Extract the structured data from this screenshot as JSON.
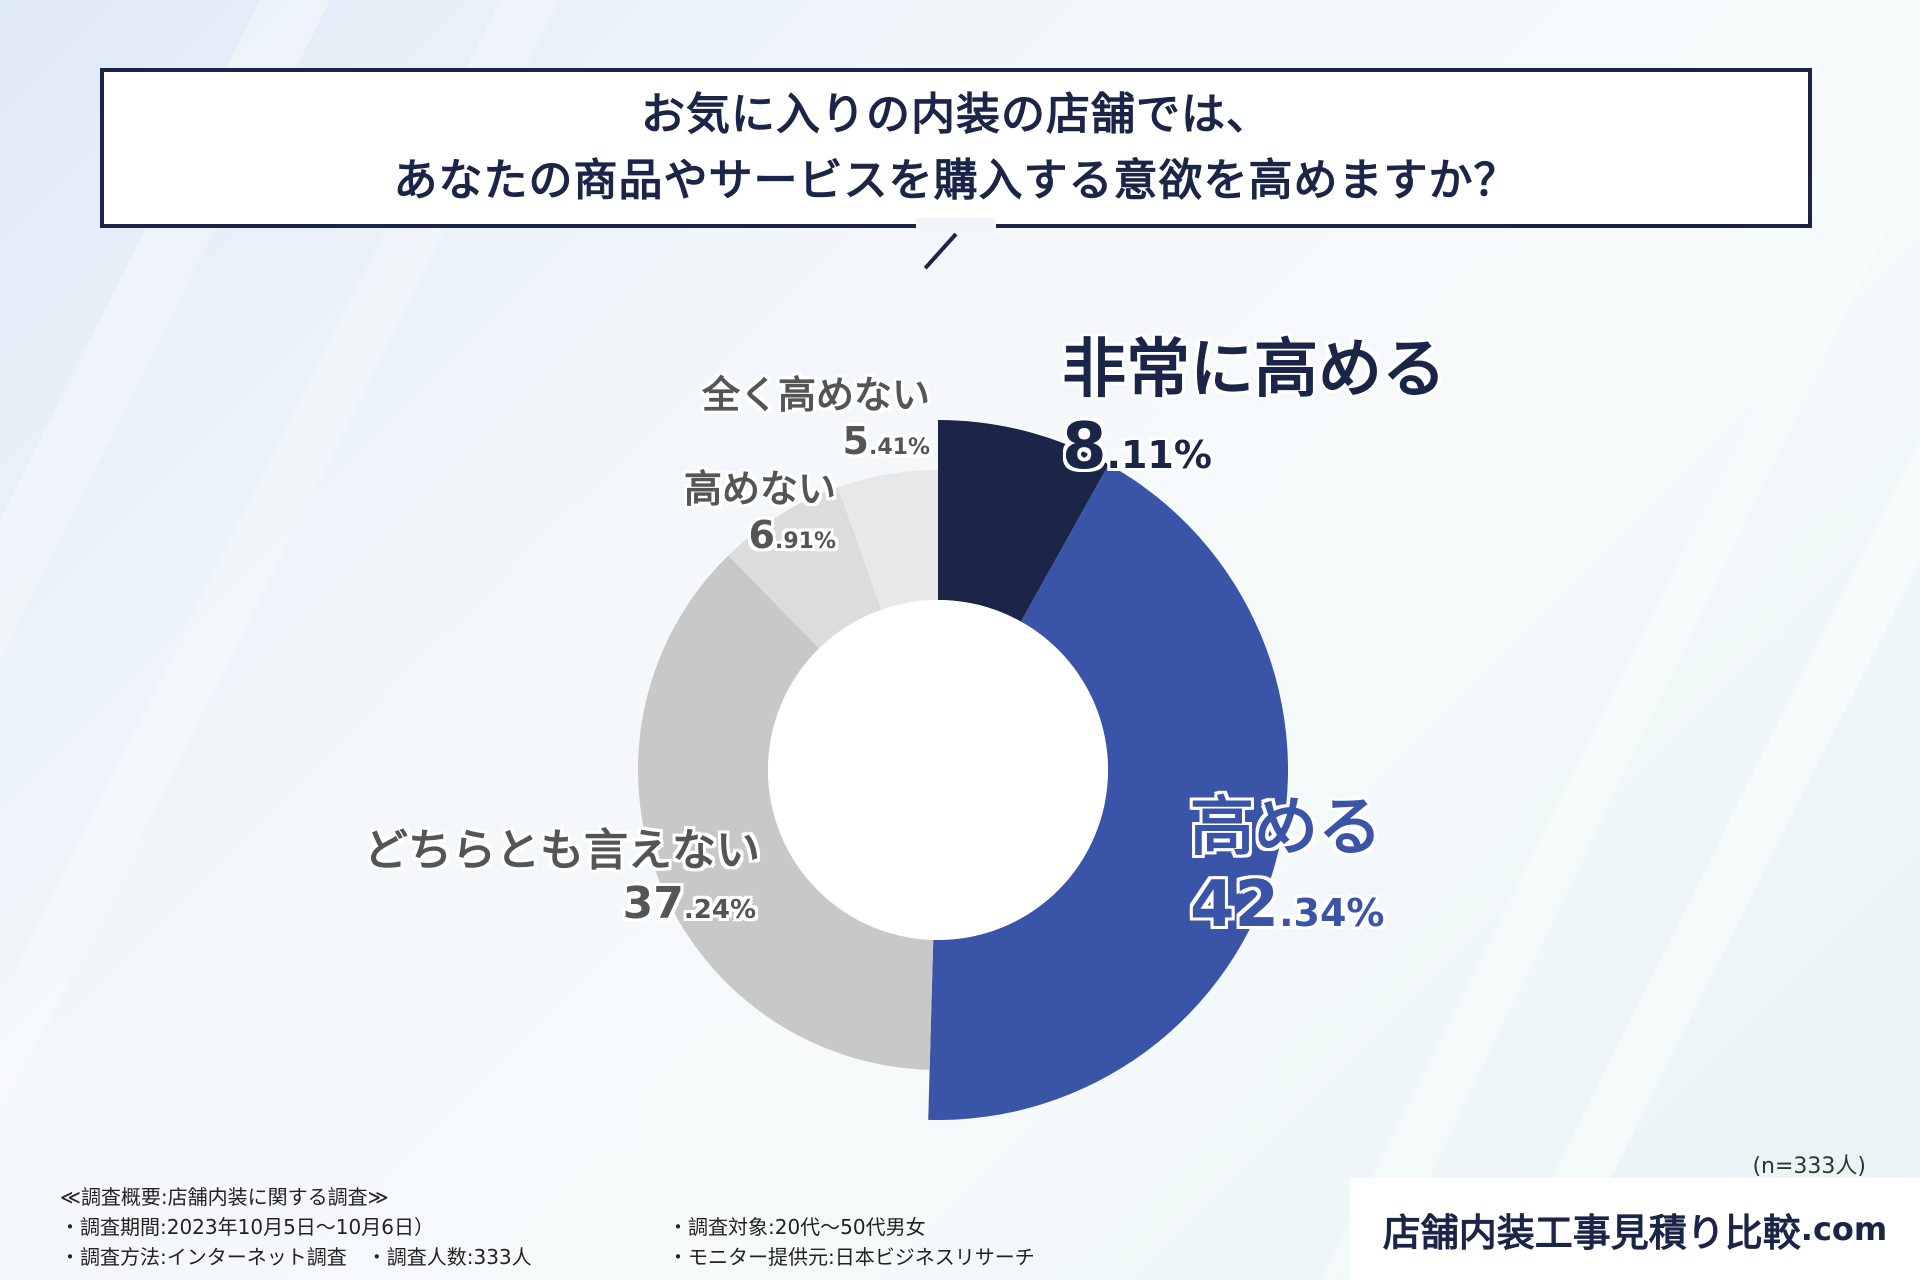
{
  "title": {
    "line1": "お気に入りの内装の店舗では、",
    "line2": "あなたの商品やサービスを購入する意欲を高めますか？"
  },
  "chart_data": {
    "type": "pie",
    "title": "お気に入りの内装の店舗では、あなたの商品やサービスを購入する意欲を高めますか？",
    "categories": [
      "非常に高める",
      "高める",
      "どちらとも言えない",
      "高めない",
      "全く高めない"
    ],
    "values": [
      8.11,
      42.34,
      37.24,
      6.91,
      5.41
    ],
    "labels": {
      "very_raise": {
        "name": "非常に高める",
        "int": "8",
        "dec": ".11%"
      },
      "raise": {
        "name": "高める",
        "int": "42",
        "dec": ".34%"
      },
      "neutral": {
        "name": "どちらとも言えない",
        "int": "37",
        "dec": ".24%"
      },
      "not_raise": {
        "name": "高めない",
        "int": "6",
        "dec": ".91%"
      },
      "not_at_all": {
        "name": "全く高めない",
        "int": "5",
        "dec": ".41%"
      }
    },
    "colors": [
      "#1a2547",
      "#3a54a8",
      "#c8c8c8",
      "#dcdcdc",
      "#e8e8e8"
    ],
    "legend": "none"
  },
  "sample": "(n=333人)",
  "notes": {
    "heading": "≪調査概要:店舗内装に関する調査≫",
    "period": "・調査期間:2023年10月5日〜10月6日）",
    "method": "・調査方法:インターネット調査　・調査人数:333人",
    "target": "・調査対象:20代〜50代男女",
    "provider": "・モニター提供元:日本ビジネスリサーチ"
  },
  "brand": {
    "name": "店舗内装工事見積り比較",
    "domain": ".com"
  }
}
